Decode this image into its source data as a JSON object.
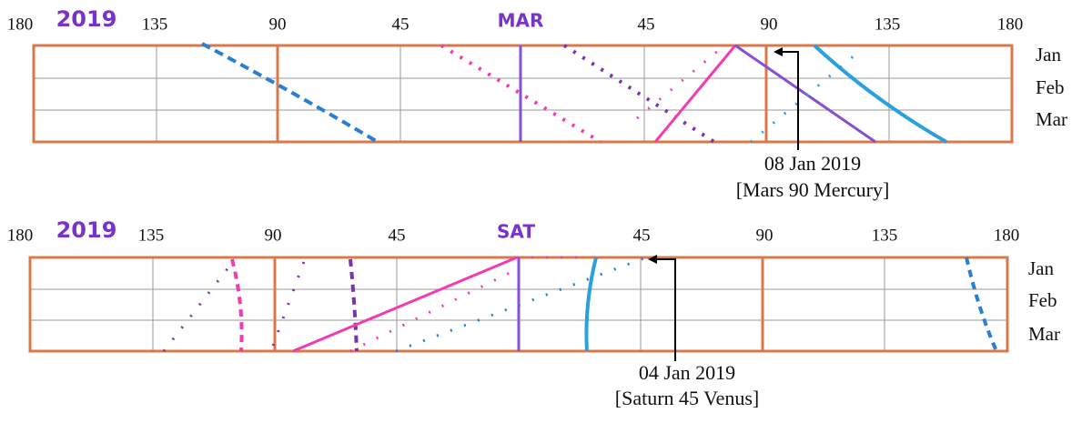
{
  "panels": [
    {
      "year": "2019",
      "planet": "MAR",
      "scale": [
        "180",
        "135",
        "90",
        "45",
        "45",
        "90",
        "135",
        "180"
      ],
      "months": [
        "Jan",
        "Feb",
        "Mar"
      ],
      "annotation": {
        "date": "08 Jan 2019",
        "aspect": "[Mars 90 Mercury]"
      }
    },
    {
      "year": "2019",
      "planet": "SAT",
      "scale": [
        "180",
        "135",
        "90",
        "45",
        "45",
        "90",
        "135",
        "180"
      ],
      "months": [
        "Jan",
        "Feb",
        "Mar"
      ],
      "annotation": {
        "date": "04 Jan 2019",
        "aspect": "[Saturn 45 Venus]"
      }
    }
  ]
}
